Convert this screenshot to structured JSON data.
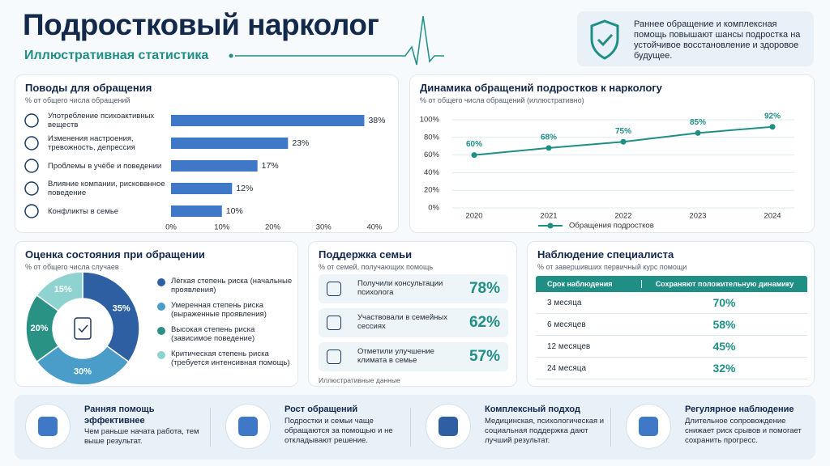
{
  "header": {
    "title": "Подростковый нарколог",
    "subtitle": "Иллюстративная статистика"
  },
  "callout": {
    "text": "Раннее обращение и комплексная помощь повышают шансы подростка на устойчивое восстановление и здоровое будущее."
  },
  "chart_data": [
    {
      "type": "bar",
      "title": "Поводы для обращения",
      "subtitle": "% от общего числа обращений",
      "categories": [
        "Употребление психоактивных веществ",
        "Изменения настроения, тревожность, депрессия",
        "Проблемы в учёбе и поведении",
        "Влияние компании, рискованное поведение",
        "Конфликты в семье"
      ],
      "values": [
        38,
        23,
        17,
        12,
        10
      ],
      "value_labels": [
        "38%",
        "23%",
        "17%",
        "12%",
        "10%"
      ],
      "color": "#3f78c6",
      "xlim": [
        0,
        40
      ],
      "xticks": [
        {
          "value": 0,
          "label": "0%"
        },
        {
          "value": 10,
          "label": "10%"
        },
        {
          "value": 20,
          "label": "20%"
        },
        {
          "value": 30,
          "label": "30%"
        },
        {
          "value": 40,
          "label": "40%"
        }
      ]
    },
    {
      "type": "line",
      "title": "Динамика обращений подростков к наркологу",
      "subtitle": "% от общего числа обращений (иллюстративно)",
      "categories": [
        "2020",
        "2021",
        "2022",
        "2023",
        "2024"
      ],
      "series": [
        {
          "name": "Обращения подростков",
          "color": "#1f8f86",
          "values": [
            60,
            68,
            75,
            85,
            92
          ],
          "value_labels": [
            "60%",
            "68%",
            "75%",
            "85%",
            "92%"
          ]
        }
      ],
      "ylim": [
        0,
        100
      ],
      "yticks": [
        {
          "value": 0,
          "label": "0%"
        },
        {
          "value": 20,
          "label": "20%"
        },
        {
          "value": 40,
          "label": "40%"
        },
        {
          "value": 60,
          "label": "60%"
        },
        {
          "value": 80,
          "label": "80%"
        },
        {
          "value": 100,
          "label": "100%"
        }
      ],
      "grid": true
    },
    {
      "type": "pie",
      "title": "Оценка состояния при обращении",
      "subtitle": "% от общего числа случаев",
      "categories": [
        "Лёгкая степень риска (начальные проявления)",
        "Умеренная степень риска (выраженные проявления)",
        "Высокая степень риска (зависимое поведение)",
        "Критическая степень риска (требуется интенсивная помощь)"
      ],
      "values": [
        35,
        30,
        20,
        15
      ],
      "value_labels": [
        "35%",
        "30%",
        "20%",
        "15%"
      ],
      "colors": [
        "#2e5fa3",
        "#4a9cc9",
        "#2a9185",
        "#8fd3d0"
      ]
    }
  ],
  "support": {
    "title": "Поддержка семьи",
    "subtitle": "% от семей, получающих помощь",
    "items": [
      {
        "text": "Получили консультации психолога",
        "value": "78%"
      },
      {
        "text": "Участвовали в семейных сессиях",
        "value": "62%"
      },
      {
        "text": "Отметили улучшение климата в семье",
        "value": "57%"
      }
    ],
    "note": "Иллюстративные данные"
  },
  "table": {
    "title": "Наблюдение специалиста",
    "subtitle": "% от завершивших первичный курс помощи",
    "columns": [
      "Срок наблюдения",
      "Сохраняют положительную динамику"
    ],
    "rows": [
      [
        "3 месяца",
        "70%"
      ],
      [
        "6 месяцев",
        "58%"
      ],
      [
        "12 месяцев",
        "45%"
      ],
      [
        "24 месяца",
        "32%"
      ]
    ]
  },
  "footer": [
    {
      "title": "Ранняя помощь эффективнее",
      "text": "Чем раньше начата работа, тем выше результат."
    },
    {
      "title": "Рост обращений",
      "text": "Подростки и семьи чаще обращаются за помощью и не откладывают решение."
    },
    {
      "title": "Комплексный подход",
      "text": "Медицинская, психологическая и социальная поддержка дают лучший результат."
    },
    {
      "title": "Регулярное наблюдение",
      "text": "Длительное сопровождение снижает риск срывов и помогает сохранить прогресс."
    }
  ]
}
